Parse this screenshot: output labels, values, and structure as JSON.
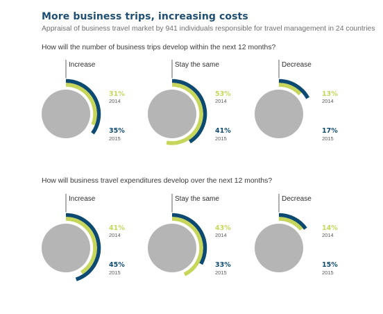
{
  "header": {
    "title": "More business trips, increasing costs",
    "subtitle": "Appraisal of business travel market by 941 individuals responsible for travel management in 24 countries"
  },
  "colors": {
    "title": "#1e4f73",
    "y2014": "#c6d65a",
    "y2015": "#0d4a71",
    "disc": "#b5b5b5"
  },
  "chart_data": [
    {
      "type": "pie",
      "title": "How will the number of business trips develop within the next 12 months?",
      "years": [
        "2014",
        "2015"
      ],
      "categories": [
        {
          "name": "Increase",
          "values": {
            "2014": 31,
            "2015": 35
          },
          "labels": {
            "2014": "31%",
            "2015": "35%"
          }
        },
        {
          "name": "Stay the same",
          "values": {
            "2014": 53,
            "2015": 41
          },
          "labels": {
            "2014": "53%",
            "2015": "41%"
          }
        },
        {
          "name": "Decrease",
          "values": {
            "2014": 13,
            "2015": 17
          },
          "labels": {
            "2014": "13%",
            "2015": "17%"
          }
        }
      ]
    },
    {
      "type": "pie",
      "title": "How will business travel expenditures develop over the next 12 months?",
      "years": [
        "2014",
        "2015"
      ],
      "categories": [
        {
          "name": "Increase",
          "values": {
            "2014": 41,
            "2015": 45
          },
          "labels": {
            "2014": "41%",
            "2015": "45%"
          }
        },
        {
          "name": "Stay the same",
          "values": {
            "2014": 43,
            "2015": 33
          },
          "labels": {
            "2014": "43%",
            "2015": "33%"
          }
        },
        {
          "name": "Decrease",
          "values": {
            "2014": 14,
            "2015": 15
          },
          "labels": {
            "2014": "14%",
            "2015": "15%"
          }
        }
      ]
    }
  ]
}
